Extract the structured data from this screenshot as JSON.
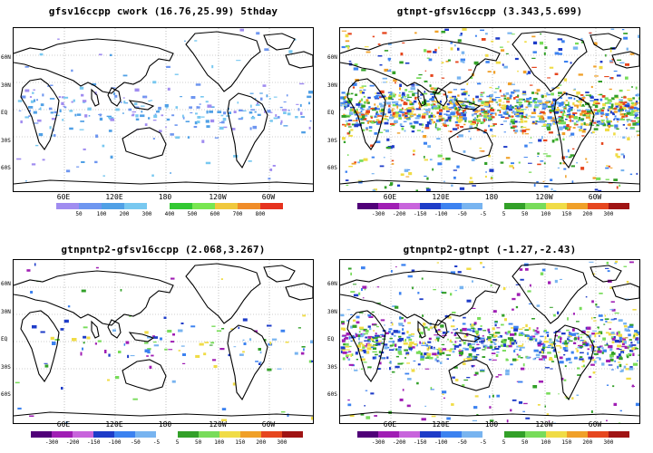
{
  "panels": [
    {
      "title": "gfsv16ccpp  cwork  (16.76,25.99)  5thday",
      "ylabels": [
        "60N",
        "30N",
        "EQ",
        "30S",
        "60S"
      ],
      "xlabels": [
        "60E",
        "120E",
        "180",
        "120W",
        "60W"
      ],
      "colorbar": {
        "colors": [
          "#a08cf0",
          "#6e96f0",
          "#50a0e6",
          "#78c8f0",
          "#ffffff",
          "#32c832",
          "#78e650",
          "#f0c83c",
          "#f08c28",
          "#e6321e"
        ],
        "labels": [
          "50",
          "100",
          "200",
          "300",
          "400",
          "500",
          "600",
          "700",
          "800"
        ]
      }
    },
    {
      "title": "gtnpt-gfsv16ccpp  (3.343,5.699)",
      "ylabels": [
        "60N",
        "30N",
        "EQ",
        "30S",
        "60S"
      ],
      "xlabels": [
        "60E",
        "120E",
        "180",
        "120W",
        "60W"
      ],
      "colorbar": {
        "colors": [
          "#500078",
          "#a01eb4",
          "#c864dc",
          "#1e3cc8",
          "#3c82f0",
          "#78b4f0",
          "#ffffff",
          "#32a028",
          "#78dc5a",
          "#f0dc46",
          "#f0a028",
          "#e6461e",
          "#a01414"
        ],
        "labels": [
          "-300",
          "-200",
          "-150",
          "-100",
          "-50",
          "-5",
          "5",
          "50",
          "100",
          "150",
          "200",
          "300"
        ]
      }
    },
    {
      "title": "gtnpntp2-gfsv16ccpp  (2.068,3.267)",
      "ylabels": [
        "60N",
        "30N",
        "EQ",
        "30S",
        "60S"
      ],
      "xlabels": [
        "60E",
        "120E",
        "180",
        "120W",
        "60W"
      ],
      "colorbar": {
        "colors": [
          "#500078",
          "#a01eb4",
          "#c864dc",
          "#1e3cc8",
          "#3c82f0",
          "#78b4f0",
          "#ffffff",
          "#32a028",
          "#78dc5a",
          "#f0dc46",
          "#f0a028",
          "#e6461e",
          "#a01414"
        ],
        "labels": [
          "-300",
          "-200",
          "-150",
          "-100",
          "-50",
          "-5",
          "5",
          "50",
          "100",
          "150",
          "200",
          "300"
        ]
      }
    },
    {
      "title": "gtnpntp2-gtnpt  (-1.27,-2.43)",
      "ylabels": [
        "60N",
        "30N",
        "EQ",
        "30S",
        "60S"
      ],
      "xlabels": [
        "60E",
        "120E",
        "180",
        "120W",
        "60W"
      ],
      "colorbar": {
        "colors": [
          "#500078",
          "#a01eb4",
          "#c864dc",
          "#1e3cc8",
          "#3c82f0",
          "#78b4f0",
          "#ffffff",
          "#32a028",
          "#78dc5a",
          "#f0dc46",
          "#f0a028",
          "#e6461e",
          "#a01414"
        ],
        "labels": [
          "-300",
          "-200",
          "-150",
          "-100",
          "-50",
          "-5",
          "5",
          "50",
          "100",
          "150",
          "200",
          "300"
        ]
      }
    }
  ]
}
